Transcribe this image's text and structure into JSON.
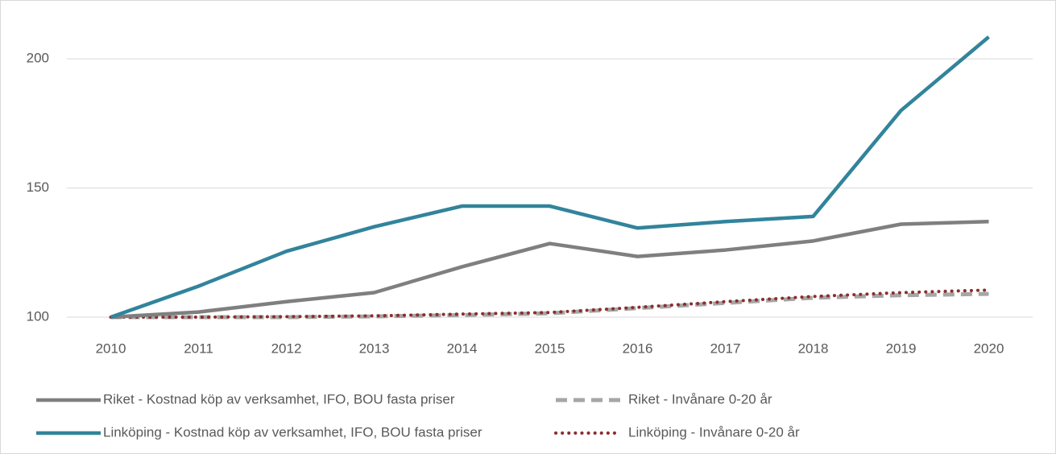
{
  "chart_data": {
    "type": "line",
    "categories": [
      "2010",
      "2011",
      "2012",
      "2013",
      "2014",
      "2015",
      "2016",
      "2017",
      "2018",
      "2019",
      "2020"
    ],
    "series": [
      {
        "name": "Riket - Kostnad köp av verksamhet, IFO, BOU fasta priser",
        "color": "#7f7f7f",
        "style": "solid",
        "values": [
          100,
          102,
          106,
          109.5,
          119.5,
          128.5,
          123.5,
          126,
          129.5,
          136,
          137
        ]
      },
      {
        "name": "Riket - Invånare 0-20 år",
        "color": "#a6a6a6",
        "style": "dashed",
        "values": [
          100,
          100,
          100,
          100.3,
          100.8,
          101.5,
          103.5,
          105.5,
          107.5,
          108.5,
          109
        ]
      },
      {
        "name": "Linköping - Kostnad köp av verksamhet, IFO, BOU fasta priser",
        "color": "#31849b",
        "style": "solid",
        "values": [
          100,
          112,
          125.5,
          135,
          143,
          143,
          134.5,
          137,
          139,
          180,
          208.5
        ]
      },
      {
        "name": "Linköping - Invånare 0-20 år",
        "color": "#8b2e2e",
        "style": "dotted",
        "values": [
          100,
          100,
          100.2,
          100.5,
          101.2,
          101.8,
          103.8,
          106,
          108,
          109.5,
          110.5
        ]
      }
    ],
    "ylim": [
      100,
      215
    ],
    "yticks": [
      100,
      150,
      200
    ],
    "grid": true,
    "legend": "bottom"
  }
}
